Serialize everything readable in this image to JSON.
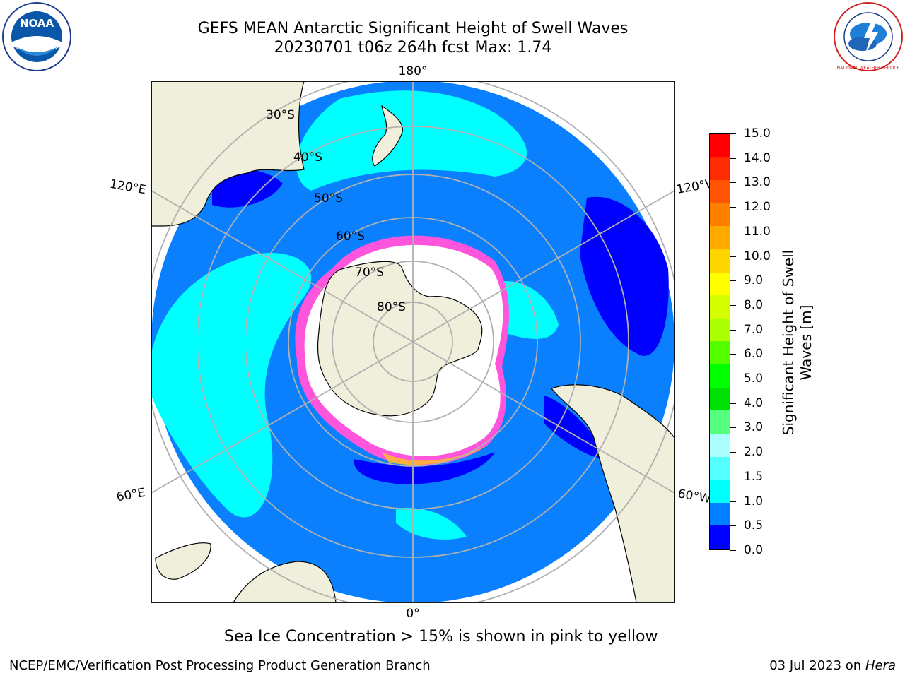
{
  "header": {
    "title_line1": "GEFS MEAN Antarctic Significant Height of Swell Waves",
    "title_line2": "20230701 t06z 264h fcst   Max: 1.74"
  },
  "logos": {
    "left": {
      "icon": "noaa-logo",
      "text": "NOAA"
    },
    "right": {
      "icon": "nws-logo",
      "text": "NATIONAL WEATHER SERVICE"
    }
  },
  "map": {
    "projection": "south-polar-stereographic",
    "longitude_labels": {
      "top": "180°",
      "bottom": "0°",
      "left_upper": "120°E",
      "left_lower": "60°E",
      "right_upper": "120°W",
      "right_lower": "60°W"
    },
    "latitude_labels": [
      "30°S",
      "40°S",
      "50°S",
      "60°S",
      "70°S",
      "80°S"
    ],
    "colors": {
      "land": "#efefdc",
      "ice": "#ffffff",
      "grid": "#b0b0b0"
    }
  },
  "colorbar": {
    "label": "Significant Height of Swell Waves [m]",
    "label_line1": "Significant Height of Swell",
    "label_line2": "Waves [m]",
    "ticks": [
      "15.0",
      "14.0",
      "13.0",
      "12.0",
      "11.0",
      "10.0",
      "9.0",
      "8.0",
      "7.0",
      "6.0",
      "5.0",
      "4.0",
      "3.0",
      "2.0",
      "1.5",
      "1.0",
      "0.5",
      "0.0"
    ],
    "colors_top_to_bottom": [
      "#ff0000",
      "#ff2b00",
      "#ff5500",
      "#ff8000",
      "#ffaa00",
      "#ffd500",
      "#ffff00",
      "#d5ff00",
      "#aaff00",
      "#55ff00",
      "#00ff00",
      "#00e000",
      "#55ff80",
      "#aaffff",
      "#55ffff",
      "#00ffff",
      "#0080ff",
      "#0000ff"
    ]
  },
  "caption": "Sea Ice Concentration > 15% is shown in pink to yellow",
  "footer": {
    "left": "NCEP/EMC/Verification Post Processing Product Generation Branch",
    "right_prefix": "03 Jul 2023 on ",
    "right_host": "Hera"
  }
}
